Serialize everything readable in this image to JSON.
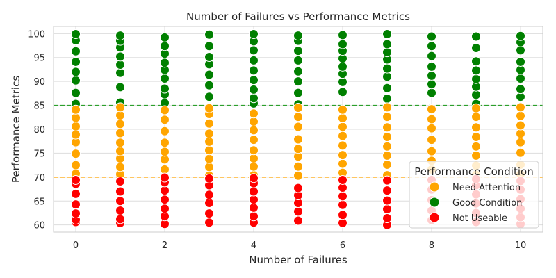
{
  "chart_data": {
    "type": "scatter",
    "title": "Number of Failures vs Performance Metrics",
    "xlabel": "Number of Failures",
    "ylabel": "Performance Metrics",
    "xlim": [
      -0.5,
      10.5
    ],
    "ylim": [
      58.5,
      101.5
    ],
    "xticks": [
      0,
      2,
      4,
      6,
      8,
      10
    ],
    "yticks": [
      60,
      65,
      70,
      75,
      80,
      85,
      90,
      95,
      100
    ],
    "grid": true,
    "reference_lines": [
      {
        "y": 85,
        "color": "#2ca02c",
        "style": "dashed"
      },
      {
        "y": 70,
        "color": "#ffa500",
        "style": "dashed"
      }
    ],
    "legend": {
      "title": "Performance Condition",
      "placement": "lower-right",
      "entries": [
        {
          "name": "Need Attention",
          "color": "#ffa500"
        },
        {
          "name": "Good Condition",
          "color": "#008000"
        },
        {
          "name": "Not Useable",
          "color": "#ff0000"
        }
      ]
    },
    "series": [
      {
        "name": "Good Condition",
        "color": "#008000",
        "points": [
          [
            0,
            85.3
          ],
          [
            0,
            87.6
          ],
          [
            0,
            90.2
          ],
          [
            0,
            92.0
          ],
          [
            0,
            94.1
          ],
          [
            0,
            96.3
          ],
          [
            0,
            98.6
          ],
          [
            0,
            99.9
          ],
          [
            1,
            85.6
          ],
          [
            1,
            88.8
          ],
          [
            1,
            91.8
          ],
          [
            1,
            93.5
          ],
          [
            1,
            95.2
          ],
          [
            1,
            97.1
          ],
          [
            1,
            98.5
          ],
          [
            1,
            99.6
          ],
          [
            2,
            85.5
          ],
          [
            2,
            87.3
          ],
          [
            2,
            88.5
          ],
          [
            2,
            90.6
          ],
          [
            2,
            92.4
          ],
          [
            2,
            93.9
          ],
          [
            2,
            95.8
          ],
          [
            2,
            97.4
          ],
          [
            2,
            99.2
          ],
          [
            3,
            86.8
          ],
          [
            3,
            89.2
          ],
          [
            3,
            91.4
          ],
          [
            3,
            93.6
          ],
          [
            3,
            95.1
          ],
          [
            3,
            97.4
          ],
          [
            3,
            99.8
          ],
          [
            4,
            85.4
          ],
          [
            4,
            86.5
          ],
          [
            4,
            88.3
          ],
          [
            4,
            90.3
          ],
          [
            4,
            92.3
          ],
          [
            4,
            94.4
          ],
          [
            4,
            96.5
          ],
          [
            4,
            98.4
          ],
          [
            4,
            99.9
          ],
          [
            5,
            85.2
          ],
          [
            5,
            87.6
          ],
          [
            5,
            90.0
          ],
          [
            5,
            92.1
          ],
          [
            5,
            94.4
          ],
          [
            5,
            96.4
          ],
          [
            5,
            98.5
          ],
          [
            5,
            99.6
          ],
          [
            6,
            87.8
          ],
          [
            6,
            89.9
          ],
          [
            6,
            91.6
          ],
          [
            6,
            93.1
          ],
          [
            6,
            94.8
          ],
          [
            6,
            96.4
          ],
          [
            6,
            97.8
          ],
          [
            6,
            99.7
          ],
          [
            7,
            86.4
          ],
          [
            7,
            88.6
          ],
          [
            7,
            91.0
          ],
          [
            7,
            92.7
          ],
          [
            7,
            94.6
          ],
          [
            7,
            96.1
          ],
          [
            7,
            97.8
          ],
          [
            7,
            99.9
          ],
          [
            8,
            87.6
          ],
          [
            8,
            89.4
          ],
          [
            8,
            91.2
          ],
          [
            8,
            93.1
          ],
          [
            8,
            95.3
          ],
          [
            8,
            97.4
          ],
          [
            8,
            99.4
          ],
          [
            9,
            85.3
          ],
          [
            9,
            87.2
          ],
          [
            9,
            88.9
          ],
          [
            9,
            90.5
          ],
          [
            9,
            92.3
          ],
          [
            9,
            94.2
          ],
          [
            9,
            97.0
          ],
          [
            9,
            99.4
          ],
          [
            10,
            86.8
          ],
          [
            10,
            88.4
          ],
          [
            10,
            90.6
          ],
          [
            10,
            92.4
          ],
          [
            10,
            94.1
          ],
          [
            10,
            96.5
          ],
          [
            10,
            98.2
          ],
          [
            10,
            99.5
          ]
        ]
      },
      {
        "name": "Need Attention",
        "color": "#ffa500",
        "points": [
          [
            0,
            70.7
          ],
          [
            0,
            72.5
          ],
          [
            0,
            74.9
          ],
          [
            0,
            77.3
          ],
          [
            0,
            78.9
          ],
          [
            0,
            80.6
          ],
          [
            0,
            82.4
          ],
          [
            0,
            84.1
          ],
          [
            1,
            70.6
          ],
          [
            1,
            72.1
          ],
          [
            1,
            73.9
          ],
          [
            1,
            75.4
          ],
          [
            1,
            77.2
          ],
          [
            1,
            79.2
          ],
          [
            1,
            81.1
          ],
          [
            1,
            82.9
          ],
          [
            1,
            84.6
          ],
          [
            2,
            71.6
          ],
          [
            2,
            73.7
          ],
          [
            2,
            75.3
          ],
          [
            2,
            77.2
          ],
          [
            2,
            79.6
          ],
          [
            2,
            82.0
          ],
          [
            2,
            84.0
          ],
          [
            3,
            70.3
          ],
          [
            3,
            72.1
          ],
          [
            3,
            73.8
          ],
          [
            3,
            75.6
          ],
          [
            3,
            77.4
          ],
          [
            3,
            79.1
          ],
          [
            3,
            81.2
          ],
          [
            3,
            83.2
          ],
          [
            3,
            84.4
          ],
          [
            4,
            70.4
          ],
          [
            4,
            72.2
          ],
          [
            4,
            73.9
          ],
          [
            4,
            75.6
          ],
          [
            4,
            77.8
          ],
          [
            4,
            79.8
          ],
          [
            4,
            81.6
          ],
          [
            4,
            83.3
          ],
          [
            5,
            70.3
          ],
          [
            5,
            72.2
          ],
          [
            5,
            74.3
          ],
          [
            5,
            75.9
          ],
          [
            5,
            77.9
          ],
          [
            5,
            80.5
          ],
          [
            5,
            82.6
          ],
          [
            5,
            84.5
          ],
          [
            6,
            70.9
          ],
          [
            6,
            72.8
          ],
          [
            6,
            74.6
          ],
          [
            6,
            76.6
          ],
          [
            6,
            78.6
          ],
          [
            6,
            80.5
          ],
          [
            6,
            82.3
          ],
          [
            6,
            84.1
          ],
          [
            7,
            70.4
          ],
          [
            7,
            72.6
          ],
          [
            7,
            74.5
          ],
          [
            7,
            76.4
          ],
          [
            7,
            78.4
          ],
          [
            7,
            80.4
          ],
          [
            7,
            82.6
          ],
          [
            7,
            84.6
          ],
          [
            8,
            71.6
          ],
          [
            8,
            73.4
          ],
          [
            8,
            75.4
          ],
          [
            8,
            77.8
          ],
          [
            8,
            80.2
          ],
          [
            8,
            82.1
          ],
          [
            8,
            84.2
          ],
          [
            9,
            70.5
          ],
          [
            9,
            72.4
          ],
          [
            9,
            74.5
          ],
          [
            9,
            76.4
          ],
          [
            9,
            78.4
          ],
          [
            9,
            80.4
          ],
          [
            9,
            82.6
          ],
          [
            9,
            84.4
          ],
          [
            10,
            70.6
          ],
          [
            10,
            72.6
          ],
          [
            10,
            75.1
          ],
          [
            10,
            77.3
          ],
          [
            10,
            79.1
          ],
          [
            10,
            80.8
          ],
          [
            10,
            82.8
          ],
          [
            10,
            84.6
          ]
        ]
      },
      {
        "name": "Not Useable",
        "color": "#ff0000",
        "points": [
          [
            0,
            60.6
          ],
          [
            0,
            61.1
          ],
          [
            0,
            62.4
          ],
          [
            0,
            64.3
          ],
          [
            0,
            66.5
          ],
          [
            0,
            68.6
          ],
          [
            0,
            69.4
          ],
          [
            1,
            60.4
          ],
          [
            1,
            61.2
          ],
          [
            1,
            63.0
          ],
          [
            1,
            65.0
          ],
          [
            1,
            67.0
          ],
          [
            1,
            69.1
          ],
          [
            2,
            60.2
          ],
          [
            2,
            61.8
          ],
          [
            2,
            63.4
          ],
          [
            2,
            65.3
          ],
          [
            2,
            67.2
          ],
          [
            2,
            68.9
          ],
          [
            2,
            69.9
          ],
          [
            3,
            60.5
          ],
          [
            3,
            62.4
          ],
          [
            3,
            64.6
          ],
          [
            3,
            66.3
          ],
          [
            3,
            68.3
          ],
          [
            3,
            69.7
          ],
          [
            4,
            60.5
          ],
          [
            4,
            61.8
          ],
          [
            4,
            63.6
          ],
          [
            4,
            65.3
          ],
          [
            4,
            67.0
          ],
          [
            4,
            68.7
          ],
          [
            4,
            69.8
          ],
          [
            5,
            60.9
          ],
          [
            5,
            62.8
          ],
          [
            5,
            64.6
          ],
          [
            5,
            66.2
          ],
          [
            5,
            67.7
          ],
          [
            6,
            60.4
          ],
          [
            6,
            62.1
          ],
          [
            6,
            64.2
          ],
          [
            6,
            66.0
          ],
          [
            6,
            67.8
          ],
          [
            6,
            69.4
          ],
          [
            7,
            60.0
          ],
          [
            7,
            61.4
          ],
          [
            7,
            63.3
          ],
          [
            7,
            65.1
          ],
          [
            7,
            67.2
          ],
          [
            7,
            69.3
          ],
          [
            8,
            61.0
          ],
          [
            8,
            63.0
          ],
          [
            8,
            65.2
          ],
          [
            8,
            67.4
          ],
          [
            8,
            69.4
          ],
          [
            9,
            60.6
          ],
          [
            9,
            62.5
          ],
          [
            9,
            64.5
          ],
          [
            9,
            66.4
          ],
          [
            9,
            68.3
          ],
          [
            9,
            69.6
          ],
          [
            10,
            60.2
          ],
          [
            10,
            61.6
          ],
          [
            10,
            63.4
          ],
          [
            10,
            65.4
          ],
          [
            10,
            67.4
          ],
          [
            10,
            69.2
          ]
        ]
      }
    ]
  }
}
